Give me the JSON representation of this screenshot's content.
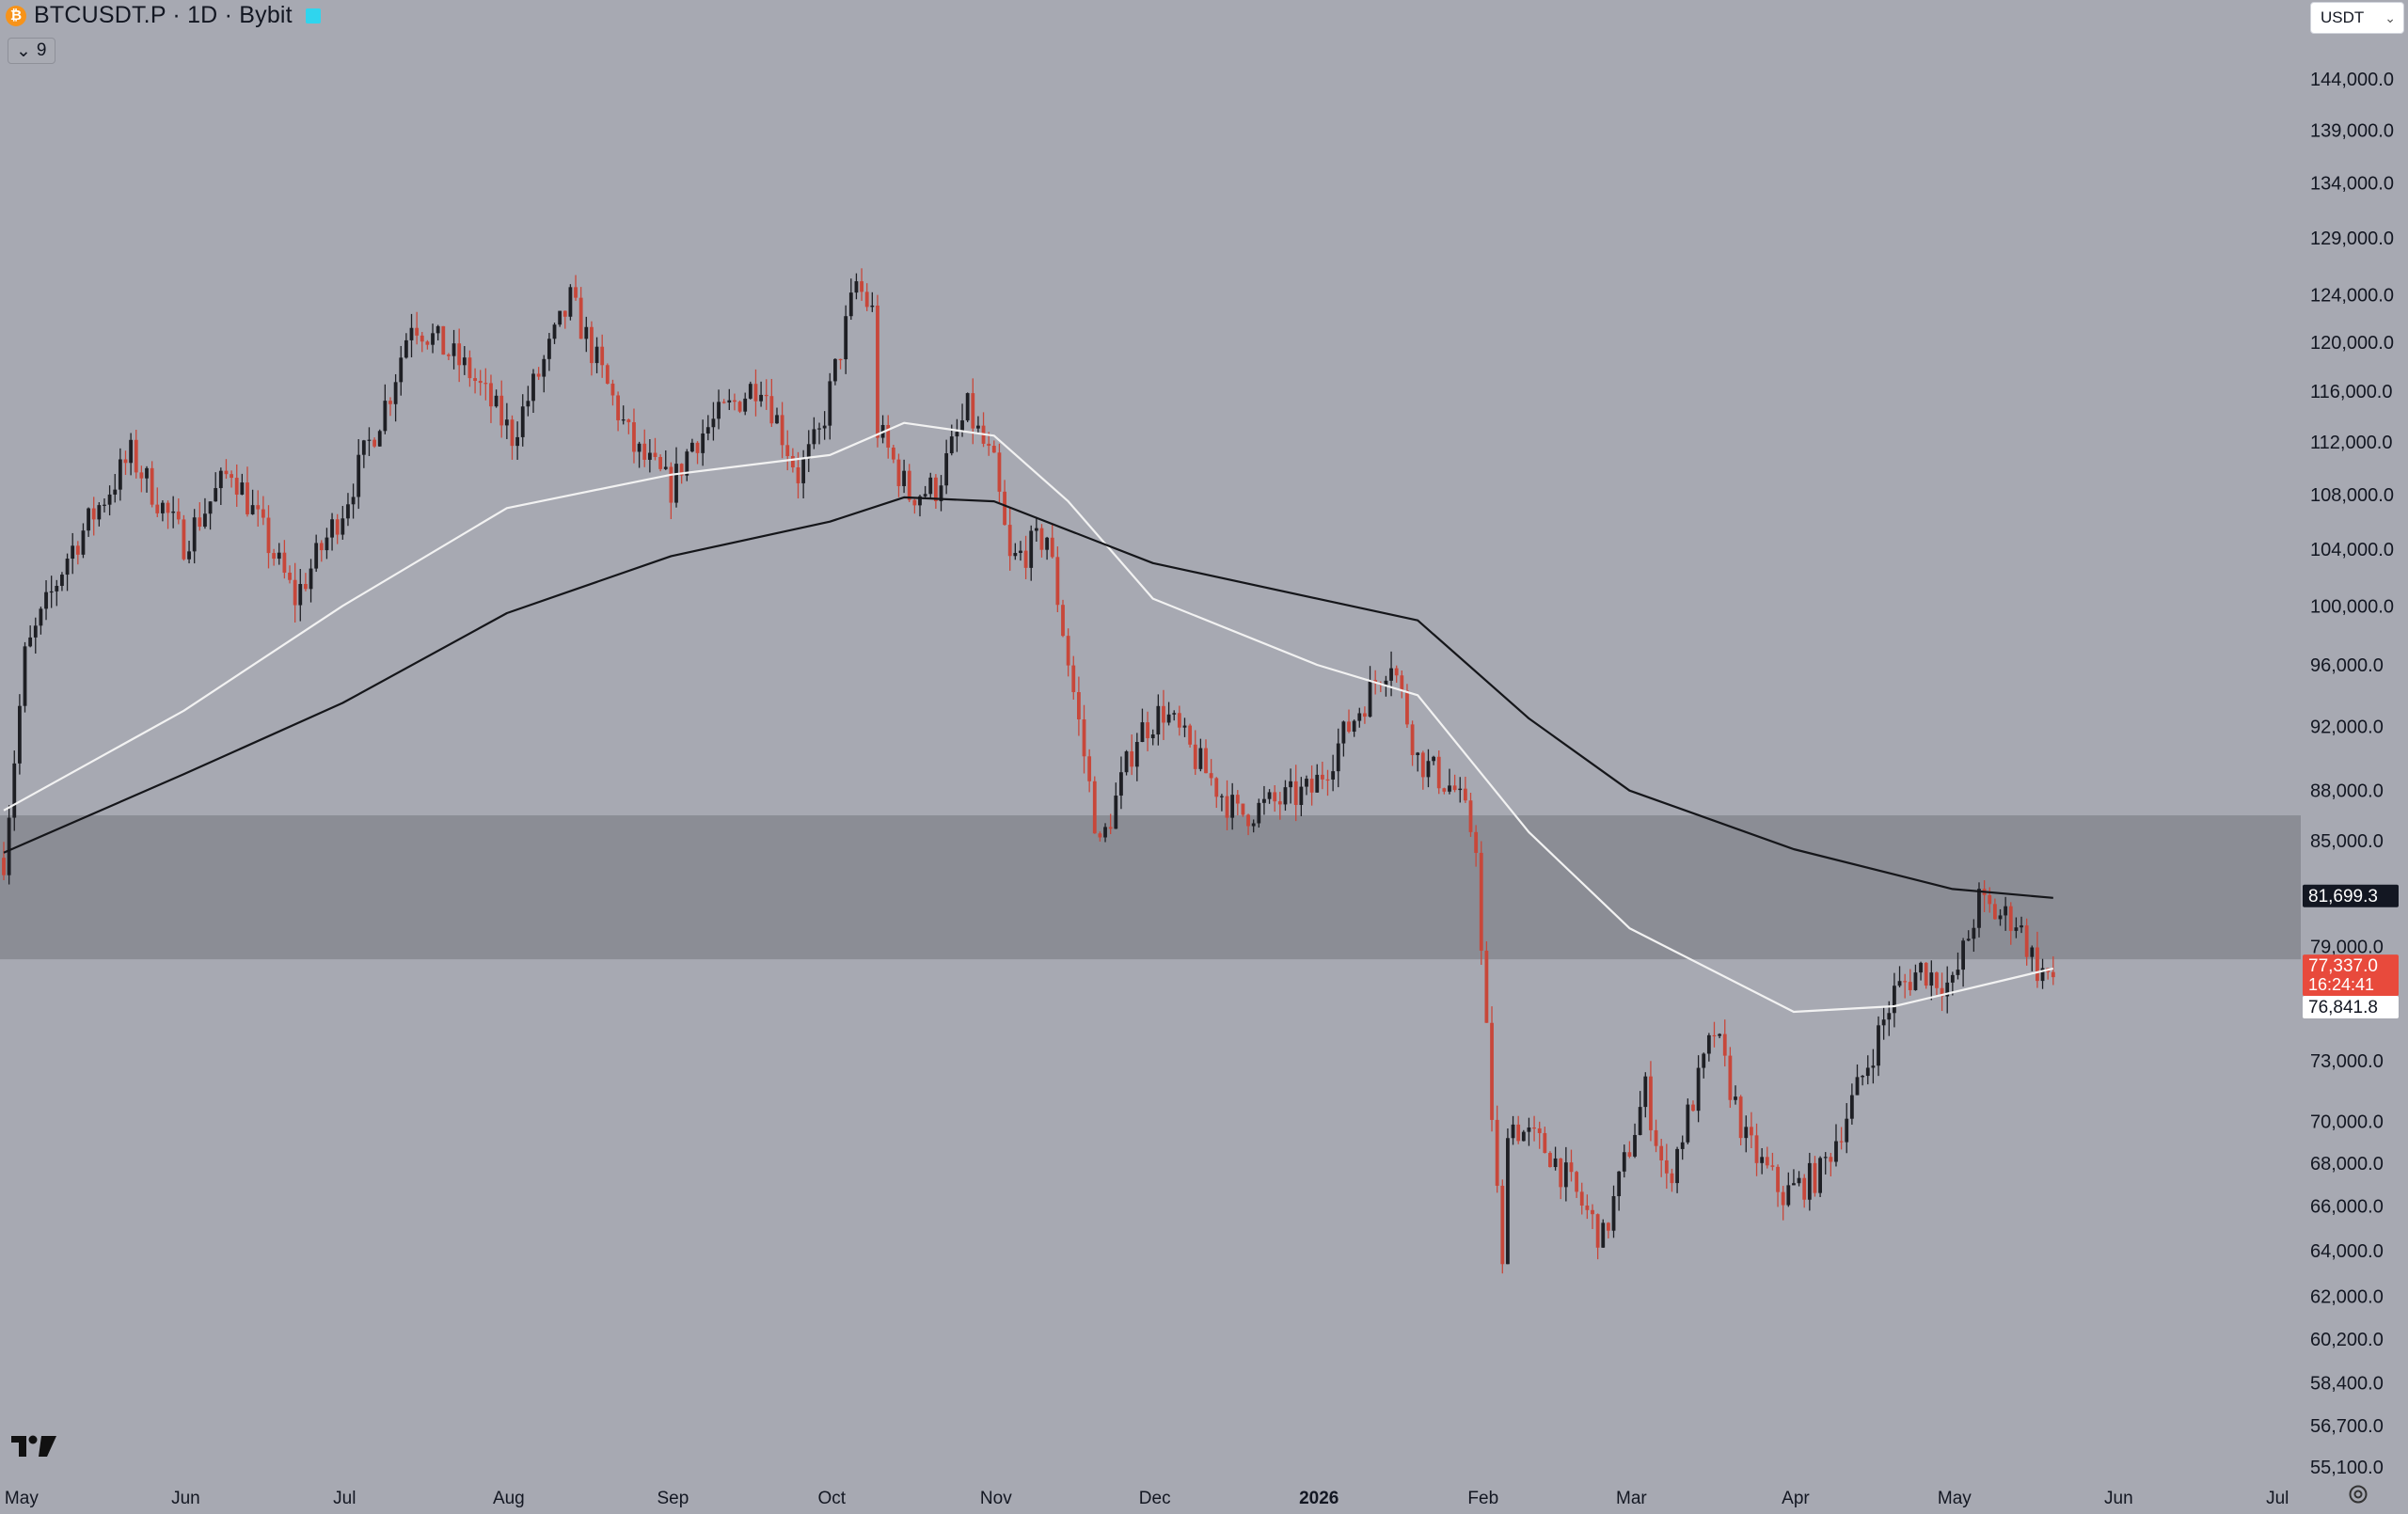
{
  "header": {
    "coin_icon": "bitcoin-icon",
    "title": "BTCUSDT.P · 1D · Bybit",
    "indicator_count": "9",
    "currency": "USDT"
  },
  "colors": {
    "background": "#a7a9b2",
    "zone": "#8b8d95",
    "up_candle": "#1e1f24",
    "down_candle": "#c8473a",
    "ma_fast": "#f2f2f2",
    "ma_slow": "#15161a",
    "price_label": "#e84a3c"
  },
  "chart_data": {
    "type": "candlestick",
    "x_labels": [
      "May",
      "Jun",
      "Jul",
      "Aug",
      "Sep",
      "Oct",
      "Nov",
      "Dec",
      "2026",
      "Feb",
      "Mar",
      "Apr",
      "May",
      "Jun",
      "Jul"
    ],
    "y_ticks": [
      144000,
      139000,
      134000,
      129000,
      124000,
      120000,
      116000,
      112000,
      108000,
      104000,
      100000,
      96000,
      92000,
      88000,
      85000,
      79000,
      73000,
      70000,
      68000,
      66000,
      64000,
      62000,
      60200,
      58400,
      56700,
      55100
    ],
    "y_tick_labels": [
      "144,000.0",
      "139,000.0",
      "134,000.0",
      "129,000.0",
      "124,000.0",
      "120,000.0",
      "116,000.0",
      "112,000.0",
      "108,000.0",
      "104,000.0",
      "100,000.0",
      "96,000.0",
      "92,000.0",
      "88,000.0",
      "85,000.0",
      "79,000.0",
      "73,000.0",
      "70,000.0",
      "68,000.0",
      "66,000.0",
      "64,000.0",
      "62,000.0",
      "60,200.0",
      "58,400.0",
      "56,700.0",
      "55,100.0"
    ],
    "y_scale": "log",
    "zone": {
      "low": 78300,
      "high": 86500
    },
    "price_anchors": [
      [
        "2025-04-28",
        84000
      ],
      [
        "2025-05-02",
        96500
      ],
      [
        "2025-05-10",
        103500
      ],
      [
        "2025-05-22",
        111000
      ],
      [
        "2025-06-01",
        104500
      ],
      [
        "2025-06-10",
        110000
      ],
      [
        "2025-06-22",
        100500
      ],
      [
        "2025-07-01",
        107000
      ],
      [
        "2025-07-10",
        116000
      ],
      [
        "2025-07-14",
        122000
      ],
      [
        "2025-07-25",
        117500
      ],
      [
        "2025-08-02",
        112500
      ],
      [
        "2025-08-13",
        123500
      ],
      [
        "2025-08-25",
        111500
      ],
      [
        "2025-09-01",
        108500
      ],
      [
        "2025-09-05",
        112000
      ],
      [
        "2025-09-18",
        117000
      ],
      [
        "2025-09-25",
        109500
      ],
      [
        "2025-09-29",
        112500
      ],
      [
        "2025-10-06",
        125000
      ],
      [
        "2025-10-09",
        122500
      ],
      [
        "2025-10-10",
        113000
      ],
      [
        "2025-10-16",
        108000
      ],
      [
        "2025-10-21",
        108500
      ],
      [
        "2025-10-27",
        114500
      ],
      [
        "2025-11-01",
        110000
      ],
      [
        "2025-11-04",
        103000
      ],
      [
        "2025-11-11",
        105000
      ],
      [
        "2025-11-21",
        84500
      ],
      [
        "2025-11-28",
        91500
      ],
      [
        "2025-12-03",
        93000
      ],
      [
        "2025-12-09",
        90000
      ],
      [
        "2025-12-17",
        86500
      ],
      [
        "2025-12-31",
        88000
      ],
      [
        "2026-01-13",
        95500
      ],
      [
        "2026-01-15",
        96500
      ],
      [
        "2026-01-20",
        90000
      ],
      [
        "2026-01-27",
        88000
      ],
      [
        "2026-01-31",
        85000
      ],
      [
        "2026-02-01",
        78500
      ],
      [
        "2026-02-05",
        63000
      ],
      [
        "2026-02-06",
        70000
      ],
      [
        "2026-02-14",
        68500
      ],
      [
        "2026-02-24",
        64500
      ],
      [
        "2026-03-04",
        71500
      ],
      [
        "2026-03-08",
        67000
      ],
      [
        "2026-03-17",
        74500
      ],
      [
        "2026-03-23",
        69000
      ],
      [
        "2026-03-30",
        66500
      ],
      [
        "2026-04-06",
        67500
      ],
      [
        "2026-04-13",
        71500
      ],
      [
        "2026-04-20",
        76500
      ],
      [
        "2026-04-25",
        77800
      ],
      [
        "2026-05-01",
        76800
      ],
      [
        "2026-05-06",
        81500
      ],
      [
        "2026-05-09",
        80800
      ],
      [
        "2026-05-13",
        80500
      ],
      [
        "2026-05-17",
        77800
      ],
      [
        "2026-05-20",
        77337
      ]
    ],
    "series": [
      {
        "name": "",
        "kind": "moving-average-fast",
        "color": "#f2f2f2",
        "points": [
          [
            "2025-04-28",
            86800
          ],
          [
            "2025-06-01",
            93000
          ],
          [
            "2025-07-01",
            100000
          ],
          [
            "2025-08-01",
            107000
          ],
          [
            "2025-09-01",
            109500
          ],
          [
            "2025-10-01",
            111000
          ],
          [
            "2025-10-15",
            113500
          ],
          [
            "2025-11-01",
            112500
          ],
          [
            "2025-11-15",
            107500
          ],
          [
            "2025-12-01",
            100500
          ],
          [
            "2026-01-01",
            96000
          ],
          [
            "2026-01-20",
            94000
          ],
          [
            "2026-02-10",
            85500
          ],
          [
            "2026-03-01",
            80000
          ],
          [
            "2026-04-01",
            75500
          ],
          [
            "2026-04-20",
            75800
          ],
          [
            "2026-05-20",
            77800
          ]
        ]
      },
      {
        "name": "",
        "kind": "moving-average-slow",
        "color": "#15161a",
        "points": [
          [
            "2025-04-28",
            84300
          ],
          [
            "2025-06-01",
            89000
          ],
          [
            "2025-07-01",
            93500
          ],
          [
            "2025-08-01",
            99500
          ],
          [
            "2025-09-01",
            103500
          ],
          [
            "2025-10-01",
            106000
          ],
          [
            "2025-10-15",
            107800
          ],
          [
            "2025-11-01",
            107500
          ],
          [
            "2025-12-01",
            103000
          ],
          [
            "2026-01-01",
            100500
          ],
          [
            "2026-01-20",
            99000
          ],
          [
            "2026-02-10",
            92500
          ],
          [
            "2026-03-01",
            88000
          ],
          [
            "2026-04-01",
            84500
          ],
          [
            "2026-05-01",
            82200
          ],
          [
            "2026-05-20",
            81699
          ]
        ]
      }
    ],
    "price_labels": [
      {
        "value": "81,699.3",
        "price": 81699.3,
        "style": "dark"
      },
      {
        "value": "77,337.0",
        "timer": "16:24:41",
        "price": 77337,
        "style": "red"
      },
      {
        "value": "76,841.8",
        "price": 76841.8,
        "style": "white"
      }
    ]
  }
}
